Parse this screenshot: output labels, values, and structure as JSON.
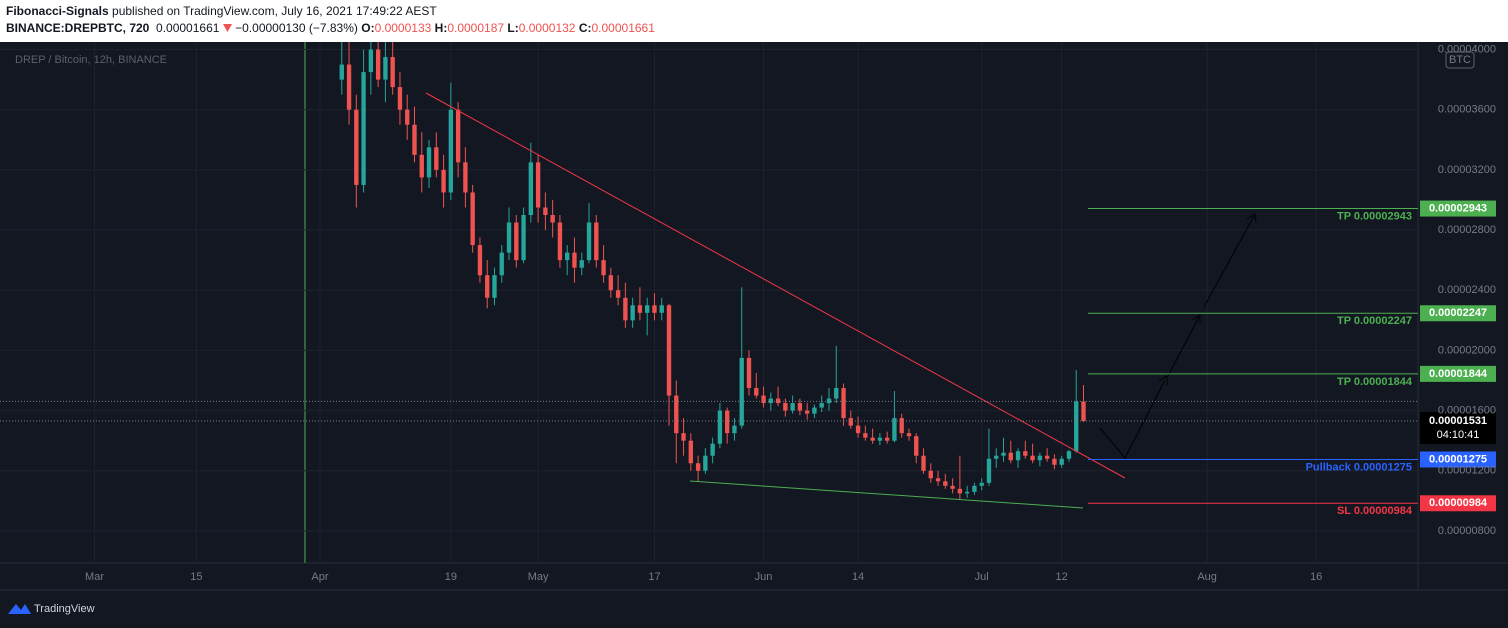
{
  "header": {
    "author": "Fibonacci-Signals",
    "published": "published on TradingView.com, July 16, 2021 17:49:22 AEST",
    "symbol": "BINANCE:DREPBTC, 720",
    "change": "−0.00000130 (−7.83%)",
    "ohlc_keys": [
      "O:",
      "H:",
      "L:",
      "C:"
    ]
  },
  "footer": {
    "brand": "TradingView"
  },
  "chart_data": {
    "type": "candlestick",
    "title": "DREP / Bitcoin, 12h, BINANCE",
    "currency": "BTC",
    "countdown": "04:10:41",
    "up_color": "#26a69a",
    "down_color": "#ef5350",
    "xlim": [
      "02-16",
      "08-30"
    ],
    "xticks": [
      {
        "value": "03-01",
        "label": "Mar"
      },
      {
        "value": "03-15",
        "label": "15"
      },
      {
        "value": "04-01",
        "label": "Apr"
      },
      {
        "value": "04-19",
        "label": "19"
      },
      {
        "value": "05-01",
        "label": "May"
      },
      {
        "value": "05-17",
        "label": "17"
      },
      {
        "value": "06-01",
        "label": "Jun"
      },
      {
        "value": "06-14",
        "label": "14"
      },
      {
        "value": "07-01",
        "label": "Jul"
      },
      {
        "value": "07-12",
        "label": "12"
      },
      {
        "value": "08-01",
        "label": "Aug"
      },
      {
        "value": "08-16",
        "label": "16"
      }
    ],
    "ylim": [
      5.87e-06,
      4.05e-05
    ],
    "yticks": [
      {
        "value": 4e-05,
        "label": "0.00004000"
      },
      {
        "value": 3.6e-05,
        "label": "0.00003600"
      },
      {
        "value": 3.2e-05,
        "label": "0.00003200"
      },
      {
        "value": 2.8e-05,
        "label": "0.00002800"
      },
      {
        "value": 2.4e-05,
        "label": "0.00002400"
      },
      {
        "value": 2e-05,
        "label": "0.00002000"
      },
      {
        "value": 1.6e-05,
        "label": "0.00001600"
      },
      {
        "value": 1.2e-05,
        "label": "0.00001200"
      },
      {
        "value": 8e-06,
        "label": "0.00000800"
      }
    ],
    "levels": [
      {
        "label": "TP 0.00002943",
        "price": 2.943e-05,
        "color": "#4caf50"
      },
      {
        "label": "TP 0.00002247",
        "price": 2.247e-05,
        "color": "#4caf50"
      },
      {
        "label": "TP 0.00001844",
        "price": 1.844e-05,
        "color": "#4caf50"
      },
      {
        "label": "Pullback 0.00001275",
        "price": 1.275e-05,
        "color": "#2962ff"
      },
      {
        "label": "SL 0.00000984",
        "price": 9.84e-06,
        "color": "#f23645"
      }
    ],
    "candles": [
      [
        "04-04",
        3.8e-05,
        4.1e-05,
        3.7e-05,
        3.9e-05
      ],
      [
        "04-05",
        3.9e-05,
        4.1e-05,
        3.5e-05,
        3.6e-05
      ],
      [
        "04-06",
        3.6e-05,
        3.7e-05,
        2.95e-05,
        3.1e-05
      ],
      [
        "04-07",
        3.1e-05,
        4e-05,
        3.05e-05,
        3.85e-05
      ],
      [
        "04-08",
        3.85e-05,
        4.1e-05,
        3.7e-05,
        4e-05
      ],
      [
        "04-09",
        4e-05,
        4.1e-05,
        3.75e-05,
        3.8e-05
      ],
      [
        "04-10",
        3.8e-05,
        4.05e-05,
        3.65e-05,
        3.95e-05
      ],
      [
        "04-11",
        3.95e-05,
        4.05e-05,
        3.7e-05,
        3.75e-05
      ],
      [
        "04-12",
        3.75e-05,
        3.85e-05,
        3.5e-05,
        3.6e-05
      ],
      [
        "04-13",
        3.6e-05,
        3.7e-05,
        3.4e-05,
        3.5e-05
      ],
      [
        "04-14",
        3.5e-05,
        3.62e-05,
        3.25e-05,
        3.3e-05
      ],
      [
        "04-15",
        3.3e-05,
        3.45e-05,
        3.05e-05,
        3.15e-05
      ],
      [
        "04-16",
        3.15e-05,
        3.4e-05,
        3.08e-05,
        3.35e-05
      ],
      [
        "04-17",
        3.35e-05,
        3.45e-05,
        3.15e-05,
        3.2e-05
      ],
      [
        "04-18",
        3.2e-05,
        3.3e-05,
        2.95e-05,
        3.05e-05
      ],
      [
        "04-19",
        3.05e-05,
        3.78e-05,
        3e-05,
        3.6e-05
      ],
      [
        "04-20",
        3.6e-05,
        3.65e-05,
        3.15e-05,
        3.25e-05
      ],
      [
        "04-21",
        3.25e-05,
        3.35e-05,
        2.95e-05,
        3.05e-05
      ],
      [
        "04-22",
        3.05e-05,
        3.1e-05,
        2.65e-05,
        2.7e-05
      ],
      [
        "04-23",
        2.7e-05,
        2.75e-05,
        2.45e-05,
        2.5e-05
      ],
      [
        "04-24",
        2.5e-05,
        2.6e-05,
        2.28e-05,
        2.35e-05
      ],
      [
        "04-25",
        2.35e-05,
        2.55e-05,
        2.3e-05,
        2.5e-05
      ],
      [
        "04-26",
        2.5e-05,
        2.7e-05,
        2.45e-05,
        2.65e-05
      ],
      [
        "04-27",
        2.65e-05,
        2.95e-05,
        2.6e-05,
        2.85e-05
      ],
      [
        "04-28",
        2.85e-05,
        2.9e-05,
        2.55e-05,
        2.6e-05
      ],
      [
        "04-29",
        2.6e-05,
        2.95e-05,
        2.58e-05,
        2.9e-05
      ],
      [
        "04-30",
        2.9e-05,
        3.38e-05,
        2.85e-05,
        3.25e-05
      ],
      [
        "05-01",
        3.25e-05,
        3.3e-05,
        2.85e-05,
        2.95e-05
      ],
      [
        "05-02",
        2.95e-05,
        3.05e-05,
        2.8e-05,
        2.9e-05
      ],
      [
        "05-03",
        2.9e-05,
        3e-05,
        2.75e-05,
        2.85e-05
      ],
      [
        "05-04",
        2.85e-05,
        2.9e-05,
        2.55e-05,
        2.6e-05
      ],
      [
        "05-05",
        2.6e-05,
        2.7e-05,
        2.5e-05,
        2.65e-05
      ],
      [
        "05-06",
        2.65e-05,
        2.75e-05,
        2.45e-05,
        2.55e-05
      ],
      [
        "05-07",
        2.55e-05,
        2.65e-05,
        2.5e-05,
        2.6e-05
      ],
      [
        "05-08",
        2.6e-05,
        2.98e-05,
        2.58e-05,
        2.85e-05
      ],
      [
        "05-09",
        2.85e-05,
        2.9e-05,
        2.55e-05,
        2.6e-05
      ],
      [
        "05-10",
        2.6e-05,
        2.7e-05,
        2.45e-05,
        2.5e-05
      ],
      [
        "05-11",
        2.5e-05,
        2.55e-05,
        2.35e-05,
        2.4e-05
      ],
      [
        "05-12",
        2.4e-05,
        2.5e-05,
        2.3e-05,
        2.35e-05
      ],
      [
        "05-13",
        2.35e-05,
        2.45e-05,
        2.15e-05,
        2.2e-05
      ],
      [
        "05-14",
        2.2e-05,
        2.35e-05,
        2.15e-05,
        2.3e-05
      ],
      [
        "05-15",
        2.3e-05,
        2.42e-05,
        2.2e-05,
        2.25e-05
      ],
      [
        "05-16",
        2.25e-05,
        2.35e-05,
        2.1e-05,
        2.3e-05
      ],
      [
        "05-17",
        2.3e-05,
        2.38e-05,
        2.2e-05,
        2.25e-05
      ],
      [
        "05-18",
        2.25e-05,
        2.35e-05,
        2.2e-05,
        2.3e-05
      ],
      [
        "05-19",
        2.3e-05,
        2.31e-05,
        1.5e-05,
        1.7e-05
      ],
      [
        "05-20",
        1.7e-05,
        1.8e-05,
        1.25e-05,
        1.45e-05
      ],
      [
        "05-21",
        1.45e-05,
        1.55e-05,
        1.3e-05,
        1.4e-05
      ],
      [
        "05-22",
        1.4e-05,
        1.45e-05,
        1.2e-05,
        1.25e-05
      ],
      [
        "05-23",
        1.25e-05,
        1.3e-05,
        1.13e-05,
        1.2e-05
      ],
      [
        "05-24",
        1.2e-05,
        1.35e-05,
        1.18e-05,
        1.3e-05
      ],
      [
        "05-25",
        1.3e-05,
        1.42e-05,
        1.25e-05,
        1.38e-05
      ],
      [
        "05-26",
        1.38e-05,
        1.65e-05,
        1.35e-05,
        1.6e-05
      ],
      [
        "05-27",
        1.6e-05,
        1.62e-05,
        1.38e-05,
        1.45e-05
      ],
      [
        "05-28",
        1.45e-05,
        1.55e-05,
        1.4e-05,
        1.5e-05
      ],
      [
        "05-29",
        1.5e-05,
        2.42e-05,
        1.48e-05,
        1.95e-05
      ],
      [
        "05-30",
        1.95e-05,
        2e-05,
        1.7e-05,
        1.75e-05
      ],
      [
        "05-31",
        1.75e-05,
        1.85e-05,
        1.68e-05,
        1.7e-05
      ],
      [
        "06-01",
        1.7e-05,
        1.76e-05,
        1.62e-05,
        1.65e-05
      ],
      [
        "06-02",
        1.65e-05,
        1.72e-05,
        1.6e-05,
        1.68e-05
      ],
      [
        "06-03",
        1.68e-05,
        1.76e-05,
        1.63e-05,
        1.65e-05
      ],
      [
        "06-04",
        1.65e-05,
        1.68e-05,
        1.56e-05,
        1.6e-05
      ],
      [
        "06-05",
        1.6e-05,
        1.7e-05,
        1.58e-05,
        1.65e-05
      ],
      [
        "06-06",
        1.65e-05,
        1.68e-05,
        1.57e-05,
        1.6e-05
      ],
      [
        "06-07",
        1.6e-05,
        1.65e-05,
        1.54e-05,
        1.58e-05
      ],
      [
        "06-08",
        1.58e-05,
        1.64e-05,
        1.55e-05,
        1.62e-05
      ],
      [
        "06-09",
        1.62e-05,
        1.7e-05,
        1.59e-05,
        1.65e-05
      ],
      [
        "06-10",
        1.65e-05,
        1.75e-05,
        1.6e-05,
        1.68e-05
      ],
      [
        "06-11",
        1.68e-05,
        2.03e-05,
        1.65e-05,
        1.75e-05
      ],
      [
        "06-12",
        1.75e-05,
        1.78e-05,
        1.5e-05,
        1.55e-05
      ],
      [
        "06-13",
        1.55e-05,
        1.6e-05,
        1.48e-05,
        1.5e-05
      ],
      [
        "06-14",
        1.5e-05,
        1.56e-05,
        1.42e-05,
        1.45e-05
      ],
      [
        "06-15",
        1.45e-05,
        1.5e-05,
        1.4e-05,
        1.42e-05
      ],
      [
        "06-16",
        1.42e-05,
        1.48e-05,
        1.38e-05,
        1.4e-05
      ],
      [
        "06-17",
        1.4e-05,
        1.45e-05,
        1.37e-05,
        1.42e-05
      ],
      [
        "06-18",
        1.42e-05,
        1.46e-05,
        1.38e-05,
        1.4e-05
      ],
      [
        "06-19",
        1.4e-05,
        1.73e-05,
        1.39e-05,
        1.55e-05
      ],
      [
        "06-20",
        1.55e-05,
        1.58e-05,
        1.42e-05,
        1.45e-05
      ],
      [
        "06-21",
        1.45e-05,
        1.48e-05,
        1.4e-05,
        1.43e-05
      ],
      [
        "06-22",
        1.43e-05,
        1.45e-05,
        1.25e-05,
        1.3e-05
      ],
      [
        "06-23",
        1.3e-05,
        1.35e-05,
        1.18e-05,
        1.2e-05
      ],
      [
        "06-24",
        1.2e-05,
        1.25e-05,
        1.12e-05,
        1.15e-05
      ],
      [
        "06-25",
        1.15e-05,
        1.2e-05,
        1.1e-05,
        1.13e-05
      ],
      [
        "06-26",
        1.13e-05,
        1.18e-05,
        1.08e-05,
        1.1e-05
      ],
      [
        "06-27",
        1.1e-05,
        1.15e-05,
        1.05e-05,
        1.08e-05
      ],
      [
        "06-28",
        1.08e-05,
        1.3e-05,
        1.01e-05,
        1.05e-05
      ],
      [
        "06-29",
        1.05e-05,
        1.1e-05,
        1.02e-05,
        1.06e-05
      ],
      [
        "06-30",
        1.06e-05,
        1.12e-05,
        1.04e-05,
        1.1e-05
      ],
      [
        "07-01",
        1.1e-05,
        1.15e-05,
        1.07e-05,
        1.12e-05
      ],
      [
        "07-02",
        1.12e-05,
        1.48e-05,
        1.1e-05,
        1.28e-05
      ],
      [
        "07-03",
        1.28e-05,
        1.35e-05,
        1.22e-05,
        1.3e-05
      ],
      [
        "07-04",
        1.3e-05,
        1.42e-05,
        1.26e-05,
        1.32e-05
      ],
      [
        "07-05",
        1.32e-05,
        1.4e-05,
        1.25e-05,
        1.27e-05
      ],
      [
        "07-06",
        1.27e-05,
        1.35e-05,
        1.22e-05,
        1.33e-05
      ],
      [
        "07-07",
        1.33e-05,
        1.4e-05,
        1.28e-05,
        1.3e-05
      ],
      [
        "07-08",
        1.3e-05,
        1.38e-05,
        1.25e-05,
        1.27e-05
      ],
      [
        "07-09",
        1.27e-05,
        1.32e-05,
        1.23e-05,
        1.3e-05
      ],
      [
        "07-10",
        1.3e-05,
        1.35e-05,
        1.26e-05,
        1.28e-05
      ],
      [
        "07-11",
        1.28e-05,
        1.31e-05,
        1.21e-05,
        1.24e-05
      ],
      [
        "07-12",
        1.24e-05,
        1.3e-05,
        1.22e-05,
        1.28e-05
      ],
      [
        "07-13",
        1.28e-05,
        1.34e-05,
        1.26e-05,
        1.33e-05
      ],
      [
        "07-14",
        1.33e-05,
        1.87e-05,
        1.32e-05,
        1.661e-05
      ],
      [
        "07-15",
        1.661e-05,
        1.77e-05,
        1.523e-05,
        1.531e-05
      ]
    ]
  }
}
